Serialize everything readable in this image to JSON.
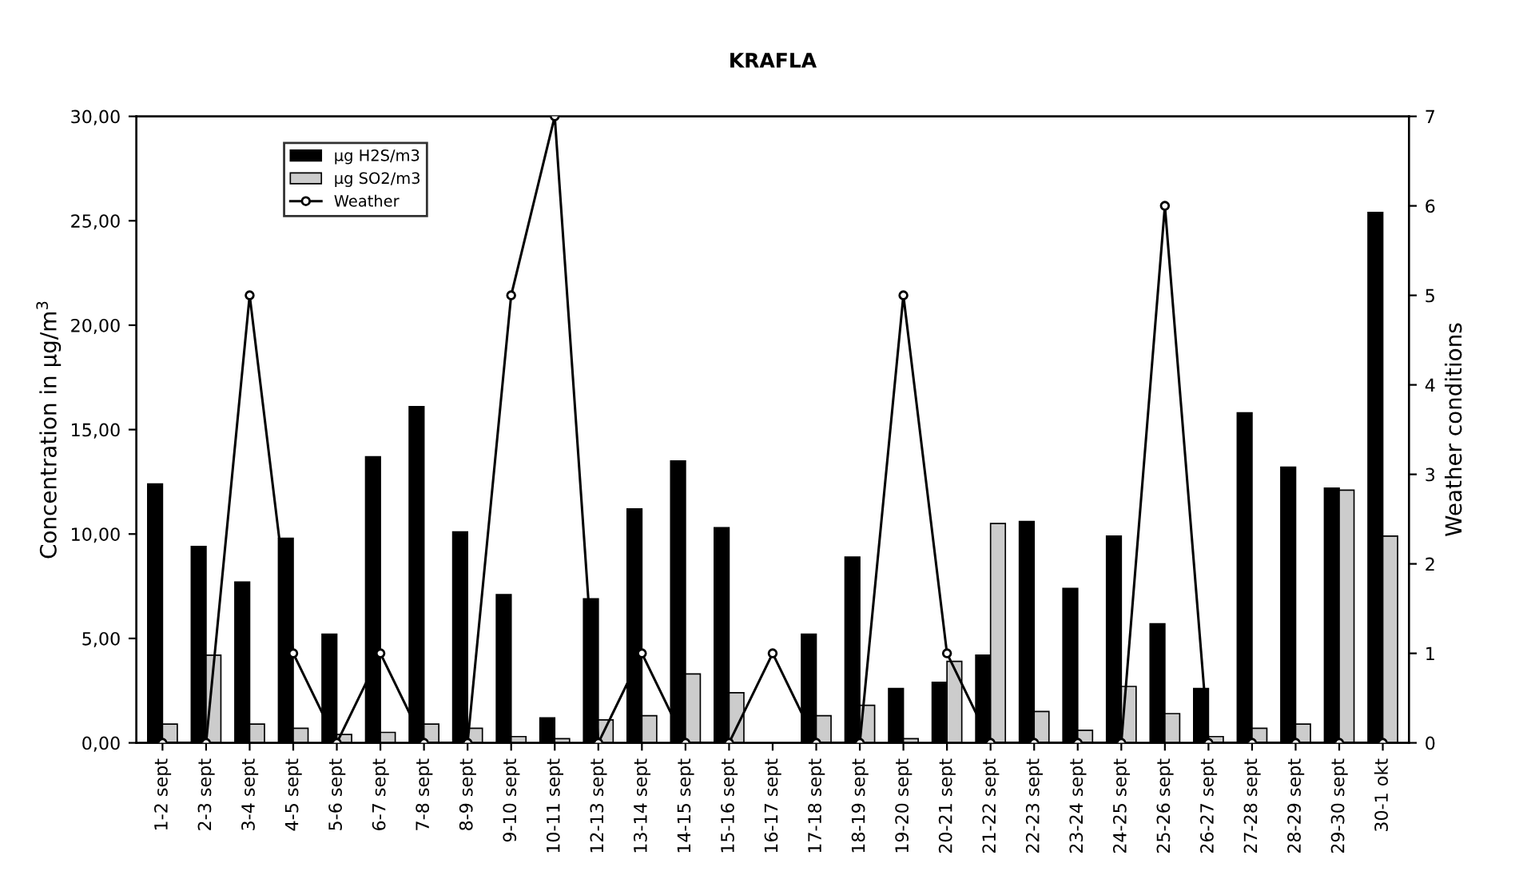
{
  "chart_data": {
    "type": "bar",
    "title": "KRAFLA",
    "ylabel": "Concentration in µg/m$^{3}$",
    "y2label": "Weather conditions",
    "categories": [
      "1-2 sept",
      "2-3 sept",
      "3-4 sept",
      "4-5 sept",
      "5-6 sept",
      "6-7 sept",
      "7-8 sept",
      "8-9 sept",
      "9-10 sept",
      "10-11 sept",
      "12-13 sept",
      "13-14 sept",
      "14-15 sept",
      "15-16 sept",
      "16-17 sept",
      "17-18 sept",
      "18-19 sept",
      "19-20 sept",
      "20-21 sept",
      "21-22 sept",
      "22-23 sept",
      "23-24 sept",
      "24-25 sept",
      "25-26 sept",
      "26-27 sept",
      "27-28 sept",
      "28-29 sept",
      "29-30 sept",
      "30-1 okt"
    ],
    "series": [
      {
        "name": "µg H2S/m3",
        "color": "#000000",
        "values": [
          12.4,
          9.4,
          7.7,
          9.8,
          5.2,
          13.7,
          16.1,
          10.1,
          7.1,
          1.2,
          6.9,
          11.2,
          13.5,
          10.3,
          null,
          5.2,
          8.9,
          2.6,
          2.9,
          4.2,
          10.6,
          7.4,
          9.9,
          5.7,
          2.6,
          15.8,
          13.2,
          12.2,
          25.4
        ]
      },
      {
        "name": "µg SO2/m3",
        "color": "#cccccc",
        "values": [
          0.9,
          4.2,
          0.9,
          0.7,
          0.4,
          0.5,
          0.9,
          0.7,
          0.3,
          0.2,
          1.1,
          1.3,
          3.3,
          2.4,
          null,
          1.3,
          1.8,
          0.2,
          3.9,
          10.5,
          1.5,
          0.6,
          2.7,
          1.4,
          0.3,
          0.7,
          0.9,
          12.1,
          9.9
        ]
      },
      {
        "name": "Weather",
        "type": "line",
        "axis": "y2",
        "color": "#000000",
        "marker": "circle",
        "values": [
          0,
          0,
          5,
          1,
          0,
          1,
          0,
          0,
          5,
          7,
          0,
          1,
          0,
          0,
          1,
          0,
          0,
          5,
          1,
          0,
          0,
          0,
          0,
          6,
          0,
          0,
          0,
          0,
          0
        ]
      }
    ],
    "ylim": [
      0,
      30
    ],
    "yticks": [
      {
        "value": 0,
        "label": "0,00"
      },
      {
        "value": 5,
        "label": "5,00"
      },
      {
        "value": 10,
        "label": "10,00"
      },
      {
        "value": 15,
        "label": "15,00"
      },
      {
        "value": 20,
        "label": "20,00"
      },
      {
        "value": 25,
        "label": "25,00"
      },
      {
        "value": 30,
        "label": "30,00"
      }
    ],
    "y2lim": [
      0,
      7
    ],
    "y2ticks": [
      0,
      1,
      2,
      3,
      4,
      5,
      6,
      7
    ],
    "legend": "top left",
    "grid": false
  }
}
